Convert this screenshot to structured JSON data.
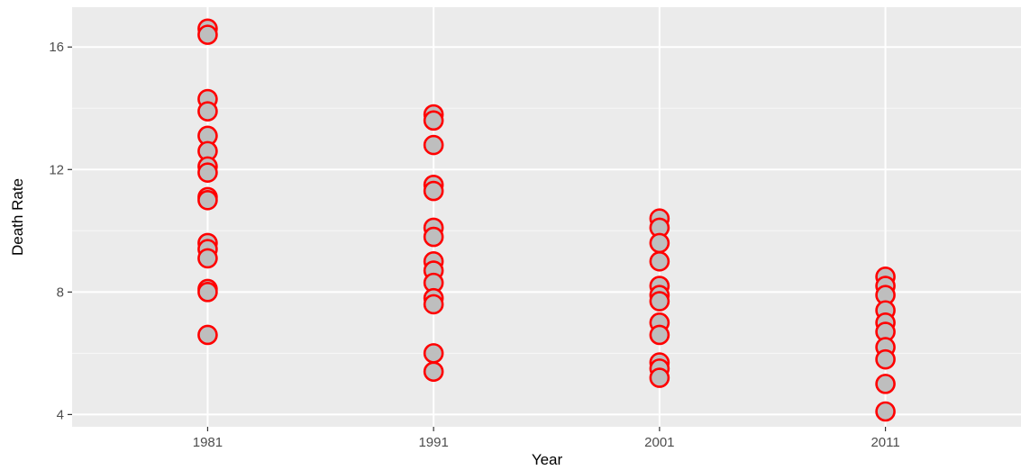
{
  "chart_data": {
    "type": "scatter",
    "title": "",
    "xlabel": "Year",
    "ylabel": "Death Rate",
    "x_categories": [
      "1981",
      "1991",
      "2001",
      "2011"
    ],
    "y_ticks": [
      4,
      8,
      12,
      16
    ],
    "ylim": [
      3.6,
      17.3
    ],
    "grid": true,
    "legend": "none",
    "colors": {
      "panel_background": "#ebebeb",
      "grid_major": "#ffffff",
      "grid_minor": "#f7f7f7",
      "point_fill": "#bebebe",
      "point_stroke": "#ff0000"
    },
    "points": [
      {
        "x": "1981",
        "y": 16.6
      },
      {
        "x": "1981",
        "y": 16.4
      },
      {
        "x": "1981",
        "y": 14.3
      },
      {
        "x": "1981",
        "y": 13.9
      },
      {
        "x": "1981",
        "y": 13.1
      },
      {
        "x": "1981",
        "y": 12.6
      },
      {
        "x": "1981",
        "y": 12.1
      },
      {
        "x": "1981",
        "y": 11.9
      },
      {
        "x": "1981",
        "y": 11.1
      },
      {
        "x": "1981",
        "y": 11.0
      },
      {
        "x": "1981",
        "y": 9.6
      },
      {
        "x": "1981",
        "y": 9.4
      },
      {
        "x": "1981",
        "y": 9.1
      },
      {
        "x": "1981",
        "y": 8.1
      },
      {
        "x": "1981",
        "y": 8.0
      },
      {
        "x": "1981",
        "y": 6.6
      },
      {
        "x": "1991",
        "y": 13.8
      },
      {
        "x": "1991",
        "y": 13.6
      },
      {
        "x": "1991",
        "y": 12.8
      },
      {
        "x": "1991",
        "y": 11.5
      },
      {
        "x": "1991",
        "y": 11.3
      },
      {
        "x": "1991",
        "y": 10.1
      },
      {
        "x": "1991",
        "y": 9.8
      },
      {
        "x": "1991",
        "y": 9.0
      },
      {
        "x": "1991",
        "y": 8.7
      },
      {
        "x": "1991",
        "y": 8.3
      },
      {
        "x": "1991",
        "y": 7.8
      },
      {
        "x": "1991",
        "y": 7.6
      },
      {
        "x": "1991",
        "y": 6.0
      },
      {
        "x": "1991",
        "y": 5.4
      },
      {
        "x": "2001",
        "y": 10.4
      },
      {
        "x": "2001",
        "y": 10.1
      },
      {
        "x": "2001",
        "y": 9.6
      },
      {
        "x": "2001",
        "y": 9.0
      },
      {
        "x": "2001",
        "y": 8.2
      },
      {
        "x": "2001",
        "y": 7.9
      },
      {
        "x": "2001",
        "y": 7.7
      },
      {
        "x": "2001",
        "y": 7.0
      },
      {
        "x": "2001",
        "y": 6.6
      },
      {
        "x": "2001",
        "y": 5.7
      },
      {
        "x": "2001",
        "y": 5.5
      },
      {
        "x": "2001",
        "y": 5.2
      },
      {
        "x": "2011",
        "y": 8.5
      },
      {
        "x": "2011",
        "y": 8.2
      },
      {
        "x": "2011",
        "y": 7.9
      },
      {
        "x": "2011",
        "y": 7.4
      },
      {
        "x": "2011",
        "y": 7.0
      },
      {
        "x": "2011",
        "y": 6.7
      },
      {
        "x": "2011",
        "y": 6.2
      },
      {
        "x": "2011",
        "y": 5.8
      },
      {
        "x": "2011",
        "y": 5.0
      },
      {
        "x": "2011",
        "y": 4.1
      }
    ]
  }
}
